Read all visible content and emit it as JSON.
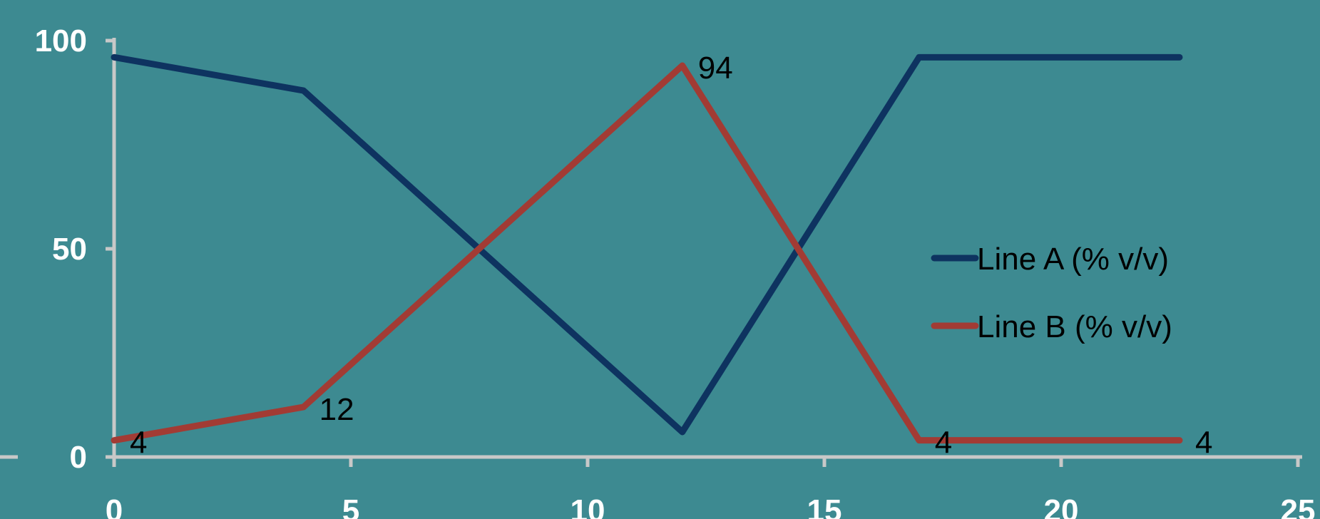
{
  "chart_data": {
    "type": "line",
    "title": "",
    "xlabel": "",
    "ylabel": "",
    "xlim": [
      0,
      25
    ],
    "ylim": [
      0,
      100
    ],
    "x_ticks": [
      "0",
      "5",
      "10",
      "15",
      "20",
      "25"
    ],
    "y_ticks": [
      "0",
      "50",
      "100"
    ],
    "grid": false,
    "legend_position": "right",
    "series": [
      {
        "name": "Line A (% v/v)",
        "color": "#0e3360",
        "x": [
          0,
          4,
          12,
          17,
          22.5
        ],
        "values": [
          96,
          88,
          6,
          96,
          96
        ],
        "data_labels": [
          null,
          null,
          null,
          null,
          null
        ]
      },
      {
        "name": "Line B (% v/v)",
        "color": "#a23b34",
        "x": [
          0,
          4,
          12,
          17,
          22.5
        ],
        "values": [
          4,
          12,
          94,
          4,
          4
        ],
        "data_labels": [
          "4",
          "12",
          "94",
          "4",
          "4"
        ]
      }
    ],
    "colors": {
      "background": "#3d8a91",
      "axis": "#c8c8c8",
      "tick_text": "#ffffff",
      "label_text": "#000000"
    }
  }
}
